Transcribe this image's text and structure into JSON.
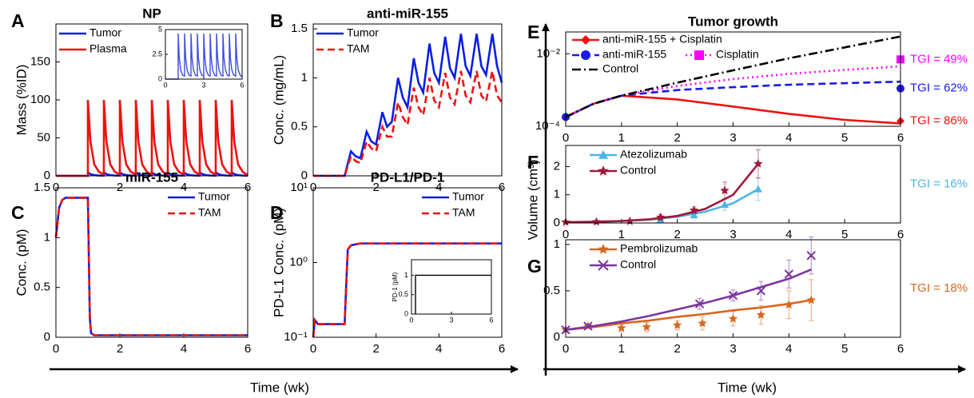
{
  "figure": {
    "x_label": [
      "Time (wk)",
      "Time (wk)"
    ],
    "y_label": "Volume (cm³)"
  },
  "chart_data": [
    {
      "type": "line",
      "panel": "A",
      "title": "NP",
      "y_label": "Mass (%ID)",
      "xlim": [
        0,
        6
      ],
      "ylim": [
        0,
        200
      ],
      "xticks": [
        0,
        2,
        4,
        6
      ],
      "yticks": [
        0,
        50,
        100,
        150
      ],
      "legend": "upper left",
      "x": [
        0,
        1,
        1,
        1.08,
        1.2,
        1.35,
        1.5,
        1.5,
        1.58,
        1.7,
        1.85,
        2,
        2,
        2.08,
        2.2,
        2.35,
        2.5,
        2.5,
        2.58,
        2.7,
        2.85,
        3,
        3,
        3.08,
        3.2,
        3.35,
        3.5,
        3.5,
        3.58,
        3.7,
        3.85,
        4,
        4,
        4.08,
        4.2,
        4.35,
        4.5,
        4.5,
        4.58,
        4.7,
        4.85,
        5,
        5,
        5.08,
        5.2,
        5.35,
        5.5,
        5.5,
        5.58,
        5.7,
        5.85,
        6
      ],
      "series": [
        {
          "name": "Tumor",
          "color": "#0a1ee6",
          "dash": "solid",
          "values": [
            0,
            0,
            4.6,
            2.2,
            0.9,
            0.4,
            0.3,
            4.6,
            2.2,
            0.9,
            0.4,
            0.3,
            4.6,
            2.2,
            0.9,
            0.4,
            0.3,
            4.6,
            2.2,
            0.9,
            0.4,
            0.3,
            4.6,
            2.2,
            0.9,
            0.4,
            0.3,
            4.6,
            2.2,
            0.9,
            0.4,
            0.3,
            4.6,
            2.2,
            0.9,
            0.4,
            0.3,
            4.6,
            2.2,
            0.9,
            0.4,
            0.3,
            4.6,
            2.2,
            0.9,
            0.4,
            0.3,
            4.6,
            2.2,
            0.9,
            0.4,
            0.2
          ]
        },
        {
          "name": "Plasma",
          "color": "#ee1111",
          "dash": "solid",
          "values": [
            0,
            0,
            100,
            45,
            15,
            5,
            2,
            100,
            45,
            15,
            5,
            2,
            100,
            45,
            15,
            5,
            2,
            100,
            45,
            15,
            5,
            2,
            100,
            45,
            15,
            5,
            2,
            100,
            45,
            15,
            5,
            2,
            100,
            45,
            15,
            5,
            2,
            100,
            45,
            15,
            5,
            2,
            100,
            45,
            15,
            5,
            2,
            100,
            45,
            15,
            5,
            1
          ]
        }
      ]
    },
    {
      "type": "line",
      "xlim": [
        0,
        6
      ],
      "ylim": [
        0,
        5
      ],
      "xticks": [
        0,
        3,
        6
      ],
      "yticks": [
        0,
        2.5,
        5
      ],
      "x": [
        0,
        1,
        1,
        1.08,
        1.2,
        1.35,
        1.5,
        1.5,
        1.58,
        1.7,
        1.85,
        2,
        2,
        2.08,
        2.2,
        2.35,
        2.5,
        2.5,
        2.58,
        2.7,
        2.85,
        3,
        3,
        3.08,
        3.2,
        3.35,
        3.5,
        3.5,
        3.58,
        3.7,
        3.85,
        4,
        4,
        4.08,
        4.2,
        4.35,
        4.5,
        4.5,
        4.58,
        4.7,
        4.85,
        5,
        5,
        5.08,
        5.2,
        5.35,
        5.5,
        5.5,
        5.58,
        5.7,
        5.85,
        6
      ],
      "series": [
        {
          "color": "#3b4be0",
          "dash": "solid",
          "values": [
            0,
            0,
            4.6,
            2.2,
            0.9,
            0.4,
            0.3,
            4.6,
            2.2,
            0.9,
            0.4,
            0.3,
            4.6,
            2.2,
            0.9,
            0.4,
            0.3,
            4.6,
            2.2,
            0.9,
            0.4,
            0.3,
            4.6,
            2.2,
            0.9,
            0.4,
            0.3,
            4.6,
            2.2,
            0.9,
            0.4,
            0.3,
            4.6,
            2.2,
            0.9,
            0.4,
            0.3,
            4.6,
            2.2,
            0.9,
            0.4,
            0.3,
            4.6,
            2.2,
            0.9,
            0.4,
            0.3,
            4.6,
            2.2,
            0.9,
            0.4,
            0.2
          ]
        }
      ]
    },
    {
      "type": "line",
      "panel": "B",
      "title": "anti-miR-155",
      "y_label": "Conc. (mg/mL)",
      "xlim": [
        0,
        6
      ],
      "ylim": [
        0,
        1.55
      ],
      "xticks": [
        0,
        2,
        4,
        6
      ],
      "yticks": [
        0,
        0.5,
        1,
        1.5
      ],
      "legend": "upper left",
      "x": [
        0,
        1,
        1.2,
        1.35,
        1.5,
        1.7,
        1.85,
        2,
        2.2,
        2.35,
        2.5,
        2.7,
        2.85,
        3,
        3.2,
        3.35,
        3.5,
        3.7,
        3.85,
        4,
        4.2,
        4.35,
        4.5,
        4.7,
        4.85,
        5,
        5.2,
        5.35,
        5.5,
        5.7,
        5.85,
        6
      ],
      "series": [
        {
          "name": "Tumor",
          "color": "#0a1ee6",
          "dash": "solid",
          "values": [
            0,
            0,
            0.25,
            0.2,
            0.18,
            0.45,
            0.35,
            0.32,
            0.65,
            0.5,
            0.55,
            1.0,
            0.8,
            0.7,
            1.2,
            0.95,
            0.85,
            1.35,
            1.05,
            0.95,
            1.42,
            1.1,
            1.0,
            1.45,
            1.12,
            1.02,
            1.45,
            1.12,
            1.03,
            1.45,
            1.12,
            0.95
          ]
        },
        {
          "name": "TAM",
          "color": "#ee1111",
          "dash": "dashed",
          "values": [
            0,
            0,
            0.2,
            0.15,
            0.13,
            0.35,
            0.28,
            0.25,
            0.5,
            0.4,
            0.4,
            0.75,
            0.6,
            0.52,
            0.9,
            0.7,
            0.62,
            1.0,
            0.77,
            0.7,
            1.05,
            0.8,
            0.73,
            1.07,
            0.82,
            0.75,
            1.07,
            0.82,
            0.76,
            1.07,
            0.82,
            0.75
          ]
        }
      ]
    },
    {
      "type": "line",
      "panel": "C",
      "title": "miR-155",
      "y_label": "Conc. (pM)",
      "xlim": [
        0,
        6
      ],
      "ylim": [
        0,
        1.5
      ],
      "xticks": [
        0,
        2,
        4,
        6
      ],
      "yticks": [
        0,
        0.5,
        1,
        1.5
      ],
      "legend": "upper right",
      "x": [
        0,
        0.1,
        0.2,
        0.3,
        1,
        1.03,
        1.06,
        1.1,
        1.2,
        6
      ],
      "series": [
        {
          "name": "Tumor",
          "color": "#0a1ee6",
          "dash": "solid",
          "values": [
            1,
            1.3,
            1.38,
            1.4,
            1.4,
            0.8,
            0.2,
            0.04,
            0.02,
            0.02
          ]
        },
        {
          "name": "TAM",
          "color": "#ee1111",
          "dash": "dashed",
          "values": [
            1,
            1.3,
            1.38,
            1.4,
            1.4,
            0.8,
            0.2,
            0.04,
            0.02,
            0.02
          ]
        }
      ]
    },
    {
      "type": "line",
      "panel": "D",
      "title": "PD-L1/PD-1",
      "y_label": "PD-L1 Conc. (pM)",
      "ylog": true,
      "xlim": [
        0,
        6
      ],
      "ylim": [
        0.1,
        10
      ],
      "xticks": [
        0,
        2,
        4,
        6
      ],
      "yticks": [
        {
          "value": 0.1,
          "label": "10⁻¹"
        },
        {
          "value": 1,
          "label": "10⁰"
        },
        {
          "value": 10,
          "label": "10¹"
        }
      ],
      "legend": "upper right",
      "x": [
        0,
        0.05,
        0.15,
        1,
        1.05,
        1.1,
        1.2,
        1.5,
        6
      ],
      "series": [
        {
          "name": "Tumor",
          "color": "#0a1ee6",
          "dash": "solid",
          "values": [
            0.1,
            0.17,
            0.15,
            0.15,
            0.5,
            1.5,
            1.7,
            1.8,
            1.8
          ]
        },
        {
          "name": "TAM",
          "color": "#ee1111",
          "dash": "dashed",
          "values": [
            0.1,
            0.17,
            0.15,
            0.15,
            0.5,
            1.5,
            1.7,
            1.8,
            1.8
          ]
        }
      ]
    },
    {
      "type": "line",
      "y_label": "PD-1 (pM)",
      "xlim": [
        0,
        6
      ],
      "ylim": [
        0,
        1.4
      ],
      "xticks": [
        0,
        3,
        6
      ],
      "yticks": [
        0,
        0.5,
        1
      ],
      "x": [
        0.3,
        0.3,
        6
      ],
      "series": [
        {
          "color": "#000000",
          "dash": "solid",
          "values": [
            0,
            1,
            1
          ]
        }
      ]
    },
    {
      "type": "line",
      "panel": "E",
      "title": "Tumor growth",
      "ylog": true,
      "xlim": [
        0,
        6
      ],
      "ylim": [
        0.0001,
        0.04
      ],
      "xticks": [
        0,
        1,
        2,
        3,
        4,
        5,
        6
      ],
      "yticks": [
        {
          "value": 0.0001,
          "label": "10⁻⁴"
        },
        {
          "value": 0.01,
          "label": "10⁻²"
        }
      ],
      "legend": "upper left",
      "x": [
        0,
        0.5,
        1,
        2,
        3,
        4,
        5,
        6
      ],
      "series": [
        {
          "name": "anti-miR-155 + Cisplatin",
          "color": "#ee1111",
          "dash": "solid",
          "marker": "diamond",
          "values": [
            0.00018,
            0.00042,
            0.0007,
            0.00055,
            0.00035,
            0.00022,
            0.00015,
            0.00012
          ],
          "points": {
            "x": [
              0,
              6
            ],
            "values": [
              0.00018,
              0.00014
            ]
          },
          "note": "TGI = 86%"
        },
        {
          "name": "anti-miR-155",
          "color": "#1a1ae6",
          "dash": "dashed",
          "marker": "circle",
          "values": [
            0.00018,
            0.00042,
            0.0007,
            0.001,
            0.0012,
            0.0014,
            0.00155,
            0.0017
          ],
          "points": {
            "x": [
              0,
              6
            ],
            "values": [
              0.00018,
              0.0011
            ]
          },
          "note": "TGI = 62%"
        },
        {
          "name": "Cisplatin",
          "color": "#ff00ff",
          "dash": "dotted",
          "marker": "square",
          "values": [
            0.00018,
            0.00042,
            0.0007,
            0.0013,
            0.002,
            0.0028,
            0.0036,
            0.0045
          ],
          "points": {
            "x": [
              6
            ],
            "values": [
              0.007
            ]
          },
          "note": "TGI = 49%"
        },
        {
          "name": "Control",
          "color": "#000000",
          "dash": "dashdot",
          "values": [
            0.00018,
            0.00042,
            0.0007,
            0.0016,
            0.0035,
            0.0075,
            0.015,
            0.03
          ]
        }
      ]
    },
    {
      "type": "line",
      "panel": "F",
      "xlim": [
        0,
        6
      ],
      "ylim": [
        0,
        2.75
      ],
      "xticks": [
        0,
        1,
        2,
        3,
        4,
        5,
        6
      ],
      "yticks": [
        0,
        1,
        2
      ],
      "legend": "upper left",
      "x": [
        0,
        0.5,
        1,
        1.5,
        2,
        2.5,
        3,
        3.45
      ],
      "series": [
        {
          "name": "Atezolizumab",
          "color": "#4cb5e8",
          "dash": "solid",
          "marker": "triangle",
          "values": [
            0.03,
            0.04,
            0.07,
            0.12,
            0.22,
            0.4,
            0.7,
            1.2
          ],
          "points": {
            "x": [
              1.7,
              2.3,
              2.85,
              3.45
            ],
            "values": [
              0.12,
              0.28,
              0.65,
              1.2
            ],
            "errors": [
              0.05,
              0.1,
              0.2,
              0.4
            ]
          },
          "note": "TGI = 16%"
        },
        {
          "name": "Control",
          "color": "#9e1a3a",
          "dash": "solid",
          "marker": "star",
          "values": [
            0.03,
            0.04,
            0.07,
            0.13,
            0.25,
            0.5,
            1.0,
            2.1
          ],
          "points": {
            "x": [
              0,
              0.55,
              1.15,
              1.7,
              2.3,
              2.85,
              3.45
            ],
            "values": [
              0.03,
              0.04,
              0.06,
              0.2,
              0.45,
              1.15,
              2.1
            ],
            "errors": [
              0.01,
              0.02,
              0.03,
              0.1,
              0.12,
              0.3,
              0.5
            ]
          }
        }
      ]
    },
    {
      "type": "line",
      "panel": "G",
      "xlim": [
        0,
        6
      ],
      "ylim": [
        0,
        1.05
      ],
      "xticks": [
        0,
        1,
        2,
        3,
        4,
        5,
        6
      ],
      "yticks": [
        0,
        0.5,
        1
      ],
      "legend": "upper left",
      "x": [
        0,
        0.5,
        1,
        1.5,
        2,
        2.5,
        3,
        3.5,
        4,
        4.4
      ],
      "series": [
        {
          "name": "Pembrolizumab",
          "color": "#d9661f",
          "dash": "solid",
          "marker": "star",
          "values": [
            0.08,
            0.11,
            0.15,
            0.18,
            0.22,
            0.25,
            0.29,
            0.32,
            0.36,
            0.4
          ],
          "points": {
            "x": [
              0,
              0.4,
              1,
              1.45,
              2,
              2.45,
              3,
              3.5,
              4,
              4.4
            ],
            "values": [
              0.08,
              0.12,
              0.1,
              0.11,
              0.13,
              0.15,
              0.2,
              0.24,
              0.35,
              0.4
            ],
            "errors": [
              0.01,
              0.02,
              0.04,
              0.05,
              0.05,
              0.07,
              0.08,
              0.1,
              0.15,
              0.22
            ]
          },
          "note": "TGI = 18%"
        },
        {
          "name": "Control",
          "color": "#7b35a0",
          "dash": "solid",
          "marker": "x",
          "values": [
            0.08,
            0.12,
            0.17,
            0.23,
            0.3,
            0.37,
            0.45,
            0.54,
            0.63,
            0.73
          ],
          "points": {
            "x": [
              0,
              0.4,
              2.4,
              3,
              3.5,
              4,
              4.4
            ],
            "values": [
              0.08,
              0.12,
              0.36,
              0.45,
              0.5,
              0.68,
              0.88
            ],
            "errors": [
              0.01,
              0.02,
              0.06,
              0.06,
              0.1,
              0.15,
              0.2
            ]
          }
        }
      ]
    }
  ]
}
